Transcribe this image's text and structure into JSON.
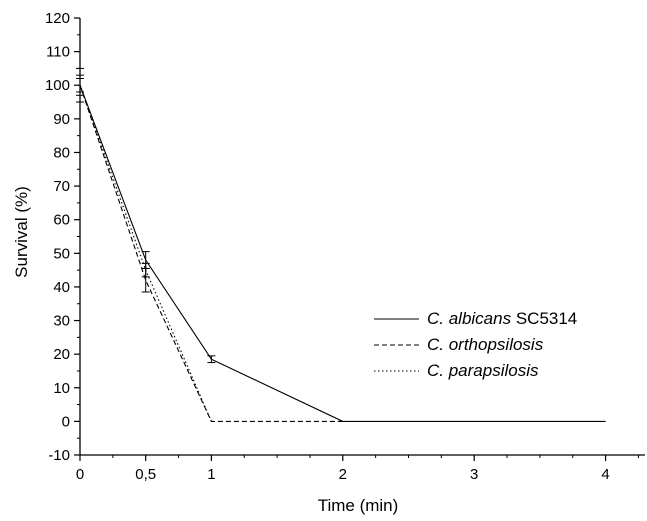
{
  "chart_data": {
    "type": "line",
    "xlabel": "Time (min)",
    "ylabel": "Survival (%)",
    "xlim": [
      0,
      4.3
    ],
    "ylim": [
      -10,
      120
    ],
    "x_ticks": [
      {
        "value": 0,
        "label": "0"
      },
      {
        "value": 0.5,
        "label": "0,5"
      },
      {
        "value": 1,
        "label": "1"
      },
      {
        "value": 2,
        "label": "2"
      },
      {
        "value": 3,
        "label": "3"
      },
      {
        "value": 4,
        "label": "4"
      }
    ],
    "x_minor_ticks": [
      0.25,
      0.75,
      1.25,
      1.5,
      1.75,
      2.25,
      2.5,
      2.75,
      3.25,
      3.5,
      3.75,
      4.25
    ],
    "y_ticks": [
      -10,
      0,
      10,
      20,
      30,
      40,
      50,
      60,
      70,
      80,
      90,
      100,
      110,
      120
    ],
    "y_minor_step": 5,
    "grid": false,
    "legend_position": "center-right",
    "series": [
      {
        "name": "C. albicans SC5314",
        "name_italic": "C. albicans",
        "name_rest": " SC5314",
        "line_style": "solid",
        "color": "#000000",
        "x": [
          0,
          0.5,
          1,
          2,
          4
        ],
        "y": [
          100,
          48,
          18.5,
          0,
          0
        ],
        "error": [
          3,
          2.5,
          1,
          0,
          0
        ]
      },
      {
        "name": "C. orthopsilosis",
        "name_italic": "C. orthopsilosis",
        "name_rest": "",
        "line_style": "dashed",
        "color": "#000000",
        "x": [
          0,
          0.5,
          1,
          2
        ],
        "y": [
          100,
          42,
          0,
          0
        ],
        "error": [
          5,
          3.5,
          0,
          0
        ]
      },
      {
        "name": "C. parapsilosis",
        "name_italic": "C. parapsilosis",
        "name_rest": "",
        "line_style": "dotted",
        "color": "#000000",
        "x": [
          0,
          0.5,
          1
        ],
        "y": [
          100,
          45,
          0
        ],
        "error": [
          2,
          2,
          0
        ]
      }
    ]
  }
}
